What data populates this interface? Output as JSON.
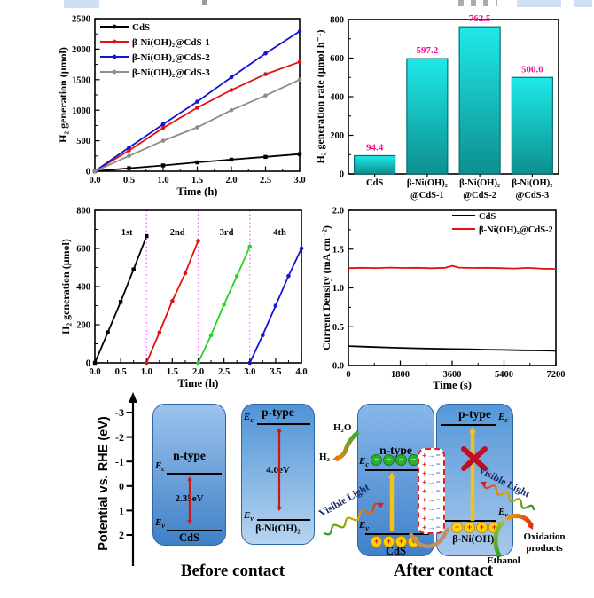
{
  "chart_data": [
    {
      "id": "h2_generation",
      "type": "line",
      "xlabel": "Time (h)",
      "ylabel": "H₂ generation (μmol)",
      "xlim": [
        0,
        3
      ],
      "ylim": [
        0,
        2500
      ],
      "xticks": [
        "0.0",
        "0.5",
        "1.0",
        "1.5",
        "2.0",
        "2.5",
        "3.0"
      ],
      "yticks": [
        "0",
        "500",
        "1000",
        "1500",
        "2000",
        "2500"
      ],
      "x": [
        0,
        0.5,
        1,
        1.5,
        2,
        2.5,
        3
      ],
      "legend_position": "top-left",
      "grid": false,
      "series": [
        {
          "name": "CdS",
          "color": "#000000",
          "marker": "square",
          "values": [
            0,
            50,
            95,
            145,
            190,
            235,
            280
          ]
        },
        {
          "name": "β-Ni(OH)₂@CdS-1",
          "color": "#e31212",
          "marker": "circle",
          "values": [
            0,
            340,
            710,
            1040,
            1330,
            1590,
            1790
          ]
        },
        {
          "name": "β-Ni(OH)₂@CdS-2",
          "color": "#1414d2",
          "marker": "circle",
          "values": [
            0,
            390,
            770,
            1140,
            1540,
            1930,
            2290
          ]
        },
        {
          "name": "β-Ni(OH)₂@CdS-3",
          "color": "#8c8c8c",
          "marker": "circle",
          "values": [
            0,
            250,
            500,
            720,
            1000,
            1240,
            1500
          ]
        }
      ]
    },
    {
      "id": "h2_rate",
      "type": "bar",
      "ylabel": "H₂ generation rate (μmol h⁻¹)",
      "ylim": [
        0,
        800
      ],
      "yticks": [
        "0",
        "200",
        "400",
        "600",
        "800"
      ],
      "categories": [
        "CdS",
        "β-Ni(OH)₂\n@CdS-1",
        "β-Ni(OH)₂\n@CdS-2",
        "β-Ni(OH)₂\n@CdS-3"
      ],
      "values": [
        94.4,
        597.2,
        762.5,
        500.0
      ],
      "value_labels": [
        "94.4",
        "597.2",
        "762.5",
        "500.0"
      ],
      "bar_gradient_top": "#1fe9e9",
      "bar_gradient_bottom": "#0d8f8f",
      "bar_border": "#096e6e",
      "label_color": "#f0148c",
      "grid": false
    },
    {
      "id": "cycling",
      "type": "line",
      "xlabel": "Time (h)",
      "ylabel": "H₂ generation (μmol)",
      "xlim": [
        0,
        4
      ],
      "ylim": [
        0,
        800
      ],
      "xticks": [
        "0.0",
        "0.5",
        "1.0",
        "1.5",
        "2.0",
        "2.5",
        "3.0",
        "3.5",
        "4.0"
      ],
      "yticks": [
        "0",
        "200",
        "400",
        "600",
        "800"
      ],
      "grid": false,
      "vlines": {
        "x": [
          1,
          2,
          3
        ],
        "color": "#ff5aff"
      },
      "annotations": [
        {
          "text": "1st",
          "x": 0.62,
          "y": 670
        },
        {
          "text": "2nd",
          "x": 1.6,
          "y": 670
        },
        {
          "text": "3rd",
          "x": 2.55,
          "y": 670
        },
        {
          "text": "4th",
          "x": 3.58,
          "y": 670
        }
      ],
      "series": [
        {
          "name": "1st",
          "color": "#000000",
          "marker": "square",
          "x": [
            0,
            0.25,
            0.5,
            0.75,
            1
          ],
          "values": [
            0,
            160,
            320,
            490,
            665
          ]
        },
        {
          "name": "2nd",
          "color": "#e31212",
          "marker": "circle",
          "x": [
            1,
            1.25,
            1.5,
            1.75,
            2
          ],
          "values": [
            0,
            160,
            325,
            470,
            640
          ]
        },
        {
          "name": "3rd",
          "color": "#28d228",
          "marker": "circle",
          "x": [
            2,
            2.25,
            2.5,
            2.75,
            3
          ],
          "values": [
            0,
            145,
            305,
            455,
            610
          ]
        },
        {
          "name": "4th",
          "color": "#1414d2",
          "marker": "circle",
          "x": [
            3,
            3.25,
            3.5,
            3.75,
            4
          ],
          "values": [
            0,
            145,
            300,
            455,
            600
          ]
        }
      ]
    },
    {
      "id": "photocurrent",
      "type": "line",
      "xlabel": "Time (s)",
      "ylabel": "Current Density (mA cm⁻²)",
      "xlim": [
        0,
        7200
      ],
      "ylim": [
        0,
        2
      ],
      "xticks": [
        "0",
        "1800",
        "3600",
        "5400",
        "7200"
      ],
      "yticks": [
        "0.0",
        "0.5",
        "1.0",
        "1.5",
        "2.0"
      ],
      "legend_position": "top-right",
      "no_markers": true,
      "grid": false,
      "series": [
        {
          "name": "CdS",
          "color": "#000000",
          "x": [
            0,
            600,
            1200,
            1800,
            2400,
            3000,
            3600,
            4200,
            4800,
            5400,
            6000,
            6600,
            7200
          ],
          "values": [
            0.25,
            0.242,
            0.234,
            0.228,
            0.222,
            0.217,
            0.213,
            0.209,
            0.205,
            0.201,
            0.197,
            0.194,
            0.19
          ]
        },
        {
          "name": "β-Ni(OH)₂@CdS-2",
          "color": "#e31212",
          "x": [
            0,
            480,
            960,
            1440,
            1920,
            2400,
            2880,
            3360,
            3600,
            3840,
            4320,
            4800,
            5280,
            5760,
            6240,
            6720,
            7200
          ],
          "values": [
            1.255,
            1.26,
            1.256,
            1.262,
            1.257,
            1.26,
            1.254,
            1.26,
            1.285,
            1.262,
            1.257,
            1.26,
            1.255,
            1.25,
            1.258,
            1.248,
            1.246
          ]
        }
      ]
    }
  ],
  "diagram": {
    "axis_label": "Potential vs. RHE (eV)",
    "axis_ticks": [
      "-3",
      "-2",
      "-1",
      "0",
      "1",
      "2"
    ],
    "band_labels": {
      "e": "E",
      "c": "c",
      "v": "v"
    },
    "charge_symbols": {
      "electron": "−",
      "hole": "+"
    },
    "interface": {
      "rows": 9,
      "plus": "+",
      "arrow": "→",
      "minus": "−"
    },
    "before": {
      "caption": "Before contact",
      "cds": {
        "type_label": "n-type",
        "name": "CdS",
        "gap": "2.35eV"
      },
      "ni": {
        "type_label": "p-type",
        "name": "β-Ni(OH)₂",
        "gap": "4.0eV"
      }
    },
    "after": {
      "caption": "After contact",
      "cds": {
        "type_label": "n-type",
        "name": "CdS"
      },
      "ni": {
        "type_label": "p-type",
        "name": "β-Ni(OH)₂"
      },
      "h2o": "H₂O",
      "h2": "H₂",
      "visible_light_left": "Visible Light",
      "visible_light_right": "Visible Light",
      "ethanol": "Ethanol",
      "oxidation_line1": "Oxidation",
      "oxidation_line2": "products"
    }
  }
}
